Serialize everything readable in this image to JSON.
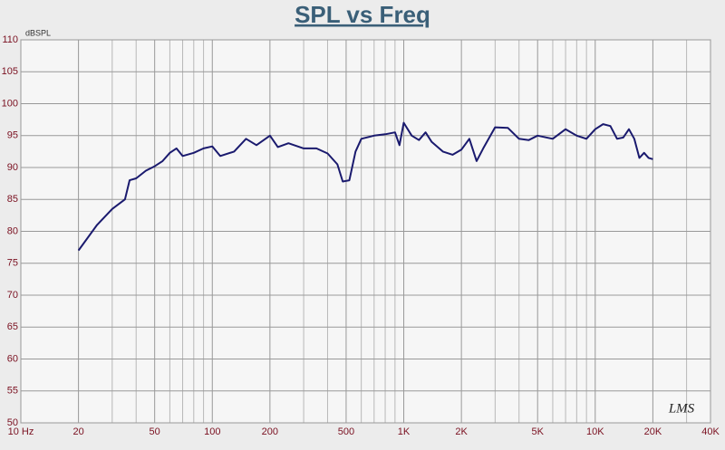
{
  "chart_data": {
    "type": "line",
    "title": "SPL vs Freq",
    "ylabel": "dBSPL",
    "annotation": "LMS",
    "xlog": true,
    "grid": true,
    "xlim": [
      10,
      40000
    ],
    "ylim": [
      50,
      110
    ],
    "xticks": [
      {
        "value": 10,
        "label": "10 Hz"
      },
      20,
      50,
      100,
      200,
      500,
      {
        "value": 1000,
        "label": "1K"
      },
      {
        "value": 2000,
        "label": "2K"
      },
      {
        "value": 5000,
        "label": "5K"
      },
      {
        "value": 10000,
        "label": "10K"
      },
      {
        "value": 20000,
        "label": "20K"
      },
      {
        "value": 40000,
        "label": "40K"
      }
    ],
    "xgrid": [
      30,
      40,
      60,
      70,
      80,
      90,
      300,
      400,
      600,
      700,
      800,
      900,
      3000,
      4000,
      6000,
      7000,
      8000,
      9000,
      30000
    ],
    "yticks": [
      50,
      55,
      60,
      65,
      70,
      75,
      80,
      85,
      90,
      95,
      100,
      105,
      110
    ],
    "x": [
      20,
      25,
      30,
      35,
      37,
      40,
      45,
      50,
      55,
      60,
      65,
      70,
      80,
      90,
      100,
      110,
      130,
      150,
      170,
      200,
      220,
      250,
      300,
      350,
      400,
      450,
      480,
      520,
      560,
      600,
      700,
      800,
      900,
      950,
      1000,
      1100,
      1200,
      1300,
      1400,
      1600,
      1800,
      2000,
      2200,
      2400,
      2600,
      3000,
      3500,
      4000,
      4500,
      5000,
      6000,
      7000,
      8000,
      9000,
      10000,
      11000,
      12000,
      13000,
      14000,
      15000,
      16000,
      17000,
      18000,
      19000,
      20000
    ],
    "series": [
      {
        "name": "SPL",
        "color": "#1a1a6e",
        "values": [
          77,
          81,
          83.5,
          85,
          88,
          88.3,
          89.5,
          90.2,
          91,
          92.3,
          93,
          91.8,
          92.3,
          93,
          93.3,
          91.8,
          92.5,
          94.5,
          93.5,
          95,
          93.2,
          93.8,
          93,
          93,
          92.2,
          90.5,
          87.8,
          88,
          92.5,
          94.5,
          95,
          95.2,
          95.5,
          93.5,
          97,
          95,
          94.3,
          95.5,
          94,
          92.5,
          92,
          92.8,
          94.5,
          91,
          93,
          96.3,
          96.2,
          94.5,
          94.3,
          95,
          94.5,
          96,
          95,
          94.5,
          96,
          96.8,
          96.5,
          94.5,
          94.7,
          96,
          94.5,
          91.5,
          92.3,
          91.5,
          91.3
        ]
      }
    ]
  }
}
